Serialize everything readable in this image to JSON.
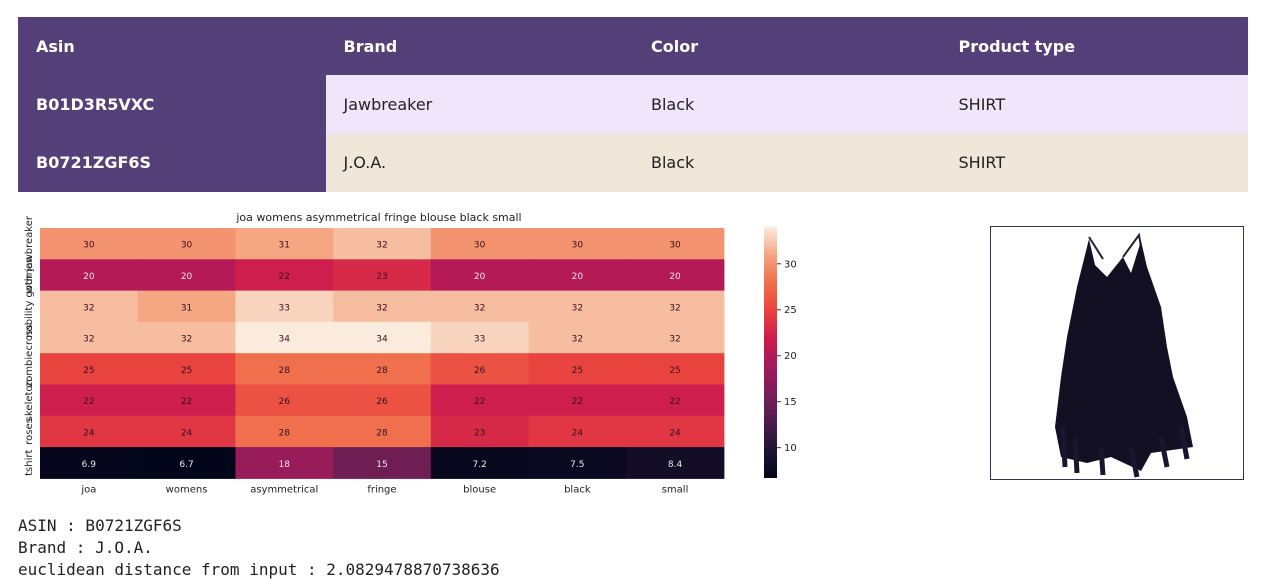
{
  "table": {
    "headers": [
      "Asin",
      "Brand",
      "Color",
      "Product type"
    ],
    "rows": [
      [
        "B01D3R5VXC",
        "Jawbreaker",
        "Black",
        "SHIRT"
      ],
      [
        "B0721ZGF6S",
        "J.O.A.",
        "Black",
        "SHIRT"
      ]
    ],
    "colors": {
      "header_bg": "#553f78",
      "row0_bg": "#f0e6fc",
      "row1_bg": "#f0e6da"
    }
  },
  "chart_data": {
    "type": "heatmap",
    "title": "joa womens asymmetrical fringe blouse black small",
    "x_labels": [
      "joa",
      "womens",
      "asymmetrical",
      "fringe",
      "blouse",
      "black",
      "small"
    ],
    "y_labels": [
      "jawbreaker",
      "women",
      "nobility goth",
      "cross",
      "zombie",
      "skeleton",
      "roses",
      "tshirt"
    ],
    "values": [
      [
        30,
        30,
        31,
        32,
        30,
        30,
        30
      ],
      [
        20,
        20,
        22,
        23,
        20,
        20,
        20
      ],
      [
        32,
        31,
        33,
        32,
        32,
        32,
        32
      ],
      [
        32,
        32,
        34,
        34,
        33,
        32,
        32
      ],
      [
        25,
        25,
        28,
        28,
        26,
        25,
        25
      ],
      [
        22,
        22,
        26,
        26,
        22,
        22,
        22
      ],
      [
        24,
        24,
        28,
        28,
        23,
        24,
        24
      ],
      [
        6.9,
        6.7,
        18,
        15,
        7.2,
        7.5,
        8.4
      ]
    ],
    "value_labels": [
      [
        "30",
        "30",
        "31",
        "32",
        "30",
        "30",
        "30"
      ],
      [
        "20",
        "20",
        "22",
        "23",
        "20",
        "20",
        "20"
      ],
      [
        "32",
        "31",
        "33",
        "32",
        "32",
        "32",
        "32"
      ],
      [
        "32",
        "32",
        "34",
        "34",
        "33",
        "32",
        "32"
      ],
      [
        "25",
        "25",
        "28",
        "28",
        "26",
        "25",
        "25"
      ],
      [
        "22",
        "22",
        "26",
        "26",
        "22",
        "22",
        "22"
      ],
      [
        "24",
        "24",
        "28",
        "28",
        "23",
        "24",
        "24"
      ],
      [
        "6.9",
        "6.7",
        "18",
        "15",
        "7.2",
        "7.5",
        "8.4"
      ]
    ],
    "colorbar": {
      "range": [
        6.7,
        34
      ],
      "ticks": [
        10,
        15,
        20,
        25,
        30
      ],
      "colormap": "rocket"
    }
  },
  "image": {
    "description_icon": "black-strappy-blouse-photo"
  },
  "info": {
    "asin": "ASIN : B0721ZGF6S",
    "brand": "Brand : J.O.A.",
    "distance": "euclidean distance from input : 2.0829478870738636"
  }
}
